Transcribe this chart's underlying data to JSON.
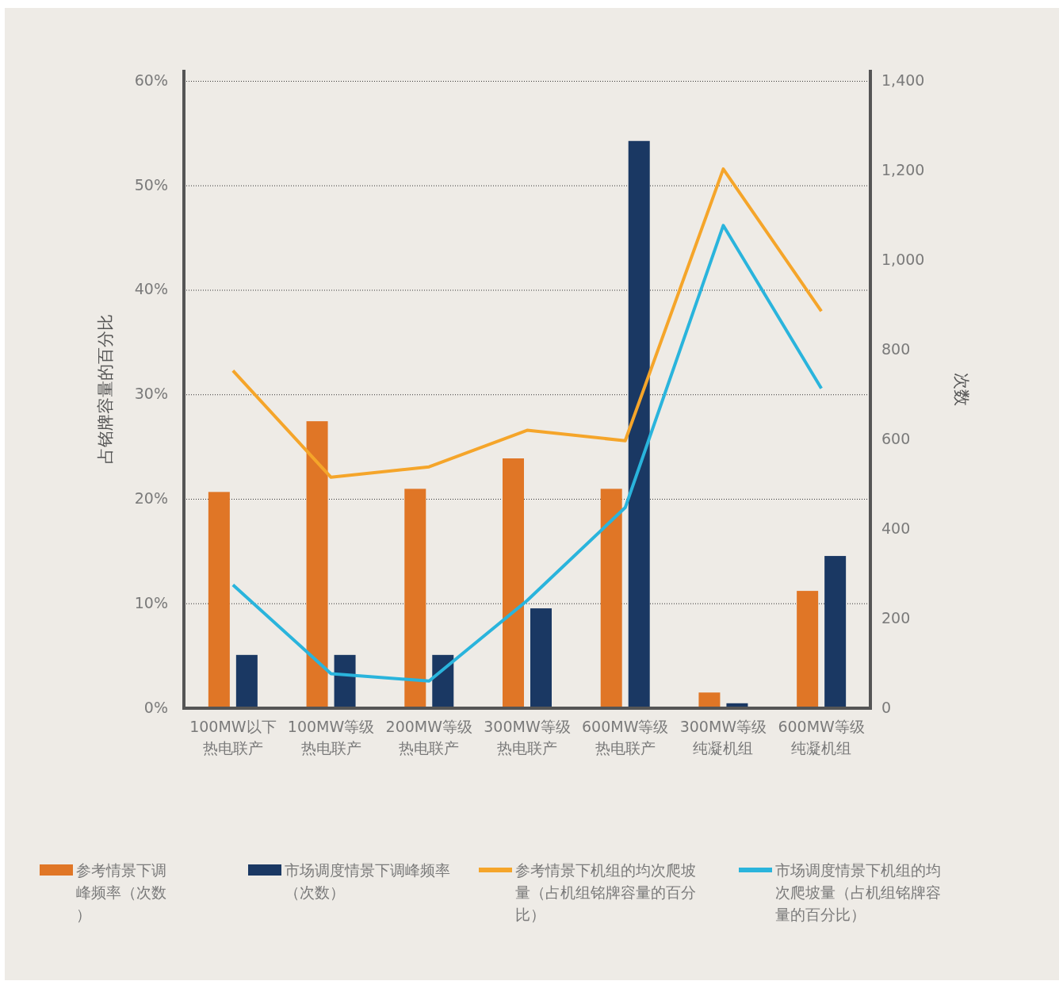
{
  "chart_data": {
    "type": "bar",
    "categories": [
      "100MW以下热电联产",
      "100MW等级热电联产",
      "200MW等级热电联产",
      "300MW等级热电联产",
      "600MW等级热电联产",
      "300MW等级纯凝机组",
      "600MW等级纯凝机组"
    ],
    "ylabel": "占铭牌容量的百分比",
    "y2label": "次数",
    "ylim": [
      0,
      61.1
    ],
    "yticks": [
      {
        "value": 0,
        "label": "0%"
      },
      {
        "value": 10,
        "label": "10%"
      },
      {
        "value": 20,
        "label": "20%"
      },
      {
        "value": 30,
        "label": "30%"
      },
      {
        "value": 40,
        "label": "40%"
      },
      {
        "value": 50,
        "label": "50%"
      },
      {
        "value": 60,
        "label": "60%"
      }
    ],
    "y2lim": [
      0,
      1426
    ],
    "y2ticks": [
      0,
      200,
      400,
      600,
      800,
      {
        "value": 1000,
        "label": "1,000"
      },
      {
        "value": 1200,
        "label": "1,200"
      },
      {
        "value": 1400,
        "label": "1,400"
      }
    ],
    "grid": "y",
    "legend": "bottom",
    "series": [
      {
        "name": "参考情景下调峰频率（次数）",
        "axis": "y2",
        "color": "#e07626",
        "values": [
          483,
          641,
          490,
          558,
          490,
          35,
          262
        ]
      },
      {
        "name": "市场调度情景下调峰频率（次数）",
        "axis": "y2",
        "color": "#1a3863",
        "values": [
          119,
          119,
          119,
          223,
          1267,
          11,
          340
        ]
      },
      {
        "name": "参考情景下机组的均次爬坡量（占机组铭牌容量的百分比）",
        "type": "line",
        "color": "#f5a52a",
        "values": [
          32.3,
          22.1,
          23.1,
          26.6,
          25.6,
          51.6,
          38.0
        ]
      },
      {
        "name": "市场调度情景下机组的均次爬坡量（占机组铭牌容量的百分比）",
        "type": "line",
        "color": "#2ab4dc",
        "values": [
          11.8,
          3.3,
          2.6,
          10.3,
          19.2,
          46.2,
          30.6
        ]
      }
    ]
  }
}
